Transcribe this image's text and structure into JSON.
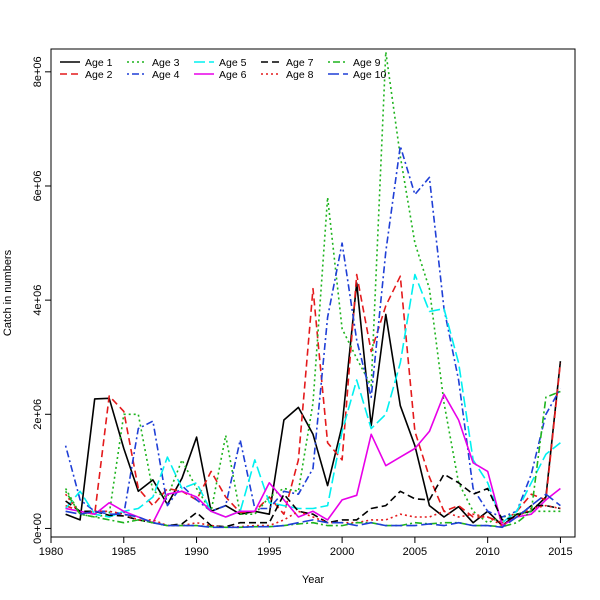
{
  "chart_data": {
    "type": "line",
    "xlabel": "Year",
    "ylabel": "Catch in numbers",
    "xlim": [
      1980,
      2016
    ],
    "ylim": [
      -150000,
      8400000
    ],
    "xticks": [
      1980,
      1985,
      1990,
      1995,
      2000,
      2005,
      2010,
      2015
    ],
    "yticks": [
      0,
      2000000,
      4000000,
      6000000,
      8000000
    ],
    "yticklabels": [
      "0e+00",
      "2e+06",
      "4e+06",
      "6e+06",
      "8e+06"
    ],
    "legend_position": "top-left",
    "x": [
      1981,
      1982,
      1983,
      1984,
      1985,
      1986,
      1987,
      1988,
      1989,
      1990,
      1991,
      1992,
      1993,
      1994,
      1995,
      1996,
      1997,
      1998,
      1999,
      2000,
      2001,
      2002,
      2003,
      2004,
      2005,
      2006,
      2007,
      2008,
      2009,
      2010,
      2011,
      2012,
      2013,
      2014,
      2015
    ],
    "series": [
      {
        "name": "Age 1",
        "color": "#000000",
        "dash": "solid",
        "values": [
          250000,
          150000,
          2270000,
          2280000,
          1400000,
          650000,
          850000,
          420000,
          880000,
          1600000,
          300000,
          400000,
          250000,
          300000,
          250000,
          1900000,
          2120000,
          1650000,
          750000,
          1800000,
          4300000,
          1800000,
          3750000,
          2150000,
          1450000,
          400000,
          200000,
          380000,
          100000,
          300000,
          50000,
          250000,
          300000,
          550000,
          2930000
        ]
      },
      {
        "name": "Age 2",
        "color": "#e41a1c",
        "dash": "dashed",
        "values": [
          400000,
          300000,
          250000,
          2320000,
          2050000,
          700000,
          400000,
          700000,
          650000,
          500000,
          1000000,
          550000,
          280000,
          300000,
          550000,
          250000,
          1200000,
          4200000,
          1500000,
          1200000,
          4450000,
          3100000,
          3900000,
          4420000,
          1700000,
          900000,
          300000,
          400000,
          200000,
          200000,
          100000,
          300000,
          600000,
          500000,
          2900000
        ]
      },
      {
        "name": "Age 3",
        "color": "#1db31d",
        "dash": "dotted",
        "values": [
          700000,
          250000,
          200000,
          250000,
          2000000,
          2000000,
          650000,
          550000,
          1200000,
          700000,
          300000,
          1630000,
          250000,
          250000,
          550000,
          700000,
          650000,
          2200000,
          5800000,
          3500000,
          2980000,
          2500000,
          8350000,
          6520000,
          5000000,
          4200000,
          2200000,
          800000,
          300000,
          100000,
          200000,
          250000,
          300000,
          300000,
          300000
        ]
      },
      {
        "name": "Age 4",
        "color": "#1f3fd6",
        "dash": "dotdash",
        "values": [
          1450000,
          500000,
          300000,
          300000,
          250000,
          1750000,
          1880000,
          400000,
          750000,
          500000,
          300000,
          400000,
          1550000,
          350000,
          350000,
          650000,
          600000,
          1050000,
          3700000,
          5000000,
          3300000,
          2300000,
          4850000,
          6700000,
          5850000,
          6150000,
          3850000,
          2600000,
          700000,
          300000,
          200000,
          300000,
          950000,
          2000000,
          2450000
        ]
      },
      {
        "name": "Age 5",
        "color": "#00f0f0",
        "dash": "longdash",
        "values": [
          350000,
          650000,
          250000,
          200000,
          300000,
          350000,
          550000,
          1250000,
          700000,
          800000,
          300000,
          200000,
          300000,
          1200000,
          450000,
          400000,
          350000,
          350000,
          400000,
          1700000,
          2600000,
          1750000,
          2000000,
          2900000,
          4450000,
          3800000,
          3850000,
          2900000,
          1200000,
          800000,
          100000,
          300000,
          800000,
          1300000,
          1500000
        ]
      },
      {
        "name": "Age 6",
        "color": "#e800e8",
        "dash": "solid",
        "values": [
          350000,
          300000,
          250000,
          450000,
          300000,
          200000,
          100000,
          600000,
          650000,
          550000,
          300000,
          200000,
          300000,
          300000,
          800000,
          500000,
          200000,
          300000,
          150000,
          500000,
          580000,
          1650000,
          1100000,
          1250000,
          1400000,
          1700000,
          2350000,
          1900000,
          1150000,
          1000000,
          50000,
          200000,
          250000,
          500000,
          700000
        ]
      },
      {
        "name": "Age 7",
        "color": "#000000",
        "dash": "dashed",
        "values": [
          480000,
          300000,
          300000,
          230000,
          220000,
          150000,
          100000,
          50000,
          80000,
          280000,
          50000,
          30000,
          100000,
          100000,
          100000,
          600000,
          300000,
          250000,
          100000,
          150000,
          150000,
          350000,
          400000,
          650000,
          520000,
          500000,
          950000,
          800000,
          600000,
          700000,
          150000,
          200000,
          400000,
          400000,
          350000
        ]
      },
      {
        "name": "Age 8",
        "color": "#e41a1c",
        "dash": "dotted",
        "values": [
          600000,
          250000,
          300000,
          300000,
          250000,
          150000,
          150000,
          50000,
          50000,
          100000,
          50000,
          20000,
          30000,
          50000,
          50000,
          150000,
          300000,
          200000,
          100000,
          100000,
          100000,
          150000,
          150000,
          250000,
          200000,
          200000,
          300000,
          200000,
          250000,
          200000,
          50000,
          200000,
          350000,
          400000,
          350000
        ]
      },
      {
        "name": "Age 9",
        "color": "#1db31d",
        "dash": "dotdash",
        "values": [
          650000,
          250000,
          200000,
          150000,
          100000,
          150000,
          100000,
          50000,
          50000,
          50000,
          30000,
          20000,
          20000,
          30000,
          30000,
          50000,
          80000,
          100000,
          50000,
          50000,
          100000,
          100000,
          50000,
          50000,
          100000,
          80000,
          100000,
          100000,
          50000,
          50000,
          30000,
          100000,
          300000,
          2300000,
          2400000
        ]
      },
      {
        "name": "Age 10",
        "color": "#1f3fd6",
        "dash": "longdash",
        "values": [
          300000,
          250000,
          300000,
          250000,
          250000,
          200000,
          100000,
          50000,
          50000,
          50000,
          20000,
          20000,
          20000,
          30000,
          30000,
          50000,
          100000,
          150000,
          100000,
          100000,
          50000,
          100000,
          50000,
          50000,
          50000,
          80000,
          50000,
          100000,
          50000,
          50000,
          20000,
          200000,
          400000,
          600000,
          400000
        ]
      }
    ]
  }
}
